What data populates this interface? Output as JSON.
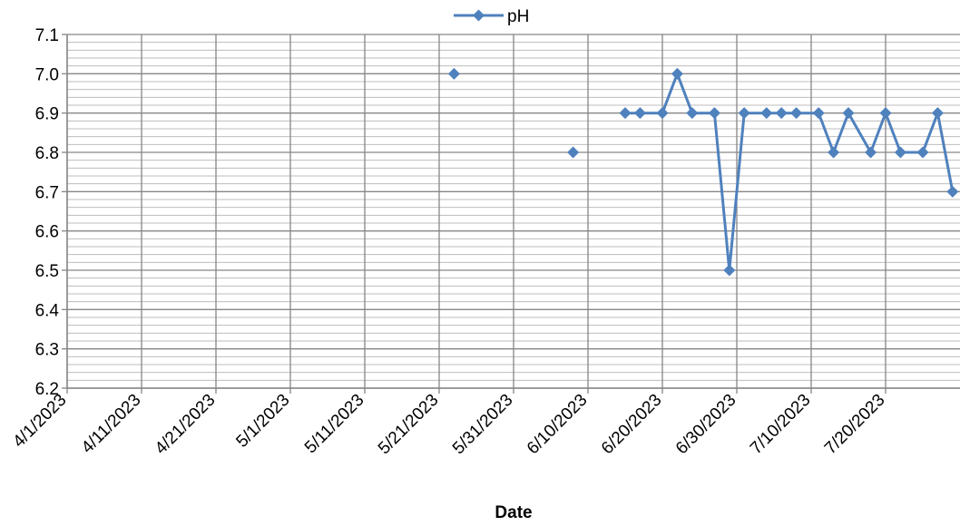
{
  "chart_data": {
    "type": "line",
    "title": "",
    "xlabel": "Date",
    "ylabel": "",
    "x_tick_labels": [
      "4/1/2023",
      "4/11/2023",
      "4/21/2023",
      "5/1/2023",
      "5/11/2023",
      "5/21/2023",
      "5/31/2023",
      "6/10/2023",
      "6/20/2023",
      "6/30/2023",
      "7/10/2023",
      "7/20/2023"
    ],
    "y_tick_labels": [
      "6.2",
      "6.3",
      "6.4",
      "6.5",
      "6.6",
      "6.7",
      "6.8",
      "6.9",
      "7.0",
      "7.1"
    ],
    "xlim": [
      "4/1/2023",
      "7/30/2023"
    ],
    "ylim": [
      6.2,
      7.1
    ],
    "grid": true,
    "legend_position": "top",
    "series": [
      {
        "name": "pH",
        "color": "#4f81bd",
        "marker": "diamond",
        "points": [
          {
            "x": "5/23/2023",
            "y": 7.0
          },
          {
            "x": null,
            "y": null
          },
          {
            "x": "6/8/2023",
            "y": 6.8
          },
          {
            "x": null,
            "y": null
          },
          {
            "x": "6/15/2023",
            "y": 6.9
          },
          {
            "x": "6/17/2023",
            "y": 6.9
          },
          {
            "x": "6/20/2023",
            "y": 6.9
          },
          {
            "x": "6/22/2023",
            "y": 7.0
          },
          {
            "x": "6/24/2023",
            "y": 6.9
          },
          {
            "x": "6/27/2023",
            "y": 6.9
          },
          {
            "x": "6/29/2023",
            "y": 6.5
          },
          {
            "x": "7/1/2023",
            "y": 6.9
          },
          {
            "x": "7/4/2023",
            "y": 6.9
          },
          {
            "x": "7/6/2023",
            "y": 6.9
          },
          {
            "x": "7/8/2023",
            "y": 6.9
          },
          {
            "x": "7/11/2023",
            "y": 6.9
          },
          {
            "x": "7/13/2023",
            "y": 6.8
          },
          {
            "x": "7/15/2023",
            "y": 6.9
          },
          {
            "x": "7/18/2023",
            "y": 6.8
          },
          {
            "x": "7/20/2023",
            "y": 6.9
          },
          {
            "x": "7/22/2023",
            "y": 6.8
          },
          {
            "x": "7/25/2023",
            "y": 6.8
          },
          {
            "x": "7/27/2023",
            "y": 6.9
          },
          {
            "x": "7/29/2023",
            "y": 6.7
          }
        ]
      }
    ]
  }
}
